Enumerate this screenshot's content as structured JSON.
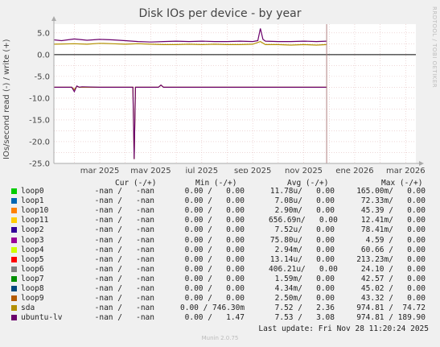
{
  "title": "Disk IOs per device - by year",
  "side_credit": "RRDTOOL / TOBI OETIKER",
  "footer": "Munin 2.0.75",
  "last_update": "Last update: Fri Nov 28 11:20:24 2025",
  "legend_headers": {
    "cur": "Cur (-/+)",
    "min": "Min (-/+)",
    "avg": "Avg (-/+)",
    "max": "Max (-/+)"
  },
  "legend": [
    {
      "name": "loop0",
      "color": "#00cc00",
      "cur": "-nan /   -nan",
      "min": "0.00 /   0.00",
      "avg": "11.78u/   0.00",
      "max": "165.00m/   0.00"
    },
    {
      "name": "loop1",
      "color": "#0066b3",
      "cur": "-nan /   -nan",
      "min": "0.00 /   0.00",
      "avg": "7.08u/   0.00",
      "max": "72.33m/   0.00"
    },
    {
      "name": "loop10",
      "color": "#ff8000",
      "cur": "-nan /   -nan",
      "min": "0.00 /   0.00",
      "avg": "2.90m/   0.00",
      "max": "45.39 /   0.00"
    },
    {
      "name": "loop11",
      "color": "#ffcc00",
      "cur": "-nan /   -nan",
      "min": "0.00 /   0.00",
      "avg": "656.69n/   0.00",
      "max": "12.41m/   0.00"
    },
    {
      "name": "loop2",
      "color": "#330099",
      "cur": "-nan /   -nan",
      "min": "0.00 /   0.00",
      "avg": "7.52u/   0.00",
      "max": "78.41m/   0.00"
    },
    {
      "name": "loop3",
      "color": "#990099",
      "cur": "-nan /   -nan",
      "min": "0.00 /   0.00",
      "avg": "75.80u/   0.00",
      "max": "4.59 /   0.00"
    },
    {
      "name": "loop4",
      "color": "#ccff00",
      "cur": "-nan /   -nan",
      "min": "0.00 /   0.00",
      "avg": "2.94m/   0.00",
      "max": "60.66 /   0.00"
    },
    {
      "name": "loop5",
      "color": "#ff0000",
      "cur": "-nan /   -nan",
      "min": "0.00 /   0.00",
      "avg": "13.14u/   0.00",
      "max": "213.23m/   0.00"
    },
    {
      "name": "loop6",
      "color": "#808080",
      "cur": "-nan /   -nan",
      "min": "0.00 /   0.00",
      "avg": "406.21u/   0.00",
      "max": "24.10 /   0.00"
    },
    {
      "name": "loop7",
      "color": "#008f00",
      "cur": "-nan /   -nan",
      "min": "0.00 /   0.00",
      "avg": "1.59m/   0.00",
      "max": "42.57 /   0.00"
    },
    {
      "name": "loop8",
      "color": "#00487d",
      "cur": "-nan /   -nan",
      "min": "0.00 /   0.00",
      "avg": "4.34m/   0.00",
      "max": "45.02 /   0.00"
    },
    {
      "name": "loop9",
      "color": "#b35a00",
      "cur": "-nan /   -nan",
      "min": "0.00 /   0.00",
      "avg": "2.50m/   0.00",
      "max": "43.32 /   0.00"
    },
    {
      "name": "sda",
      "color": "#b38f00",
      "cur": "-nan /   -nan",
      "min": "0.00 / 746.30m",
      "avg": "7.52 /   2.36",
      "max": "974.81 /  74.72"
    },
    {
      "name": "ubuntu-lv",
      "color": "#6b006b",
      "cur": "-nan /   -nan",
      "min": "0.00 /   1.47",
      "avg": "7.53 /   3.08",
      "max": "974.81 / 189.90"
    }
  ],
  "chart_data": {
    "type": "line",
    "title": "Disk IOs per device - by year",
    "ylabel": "IOs/second read (-) / write (+)",
    "xlabel": "",
    "ylim": [
      -25,
      7
    ],
    "yticks": [
      5.0,
      0.0,
      -5.0,
      -10.0,
      -15.0,
      -20.0,
      -25.0
    ],
    "x_tick_labels": [
      "mar 2025",
      "may 2025",
      "jul 2025",
      "sep 2025",
      "nov 2025",
      "ene 2026",
      "mar 2026"
    ],
    "x_tick_months": [
      2,
      4,
      6,
      8,
      10,
      12,
      14
    ],
    "x_range_months": [
      0.2,
      14.4
    ],
    "data_end_month": 10.9,
    "grid": true,
    "series": [
      {
        "name": "sda",
        "color": "#b38f00",
        "x": [
          0.2,
          1.0,
          1.5,
          2.0,
          2.5,
          3.0,
          3.5,
          4.0,
          4.5,
          5.0,
          5.5,
          6.0,
          6.5,
          7.0,
          7.5,
          8.0,
          8.3,
          8.5,
          9.0,
          9.5,
          10.0,
          10.5,
          10.9
        ],
        "values": [
          2.4,
          2.5,
          2.4,
          2.6,
          2.5,
          2.4,
          2.5,
          2.4,
          2.3,
          2.3,
          2.4,
          2.3,
          2.4,
          2.3,
          2.3,
          2.4,
          3.0,
          2.3,
          2.3,
          2.2,
          2.3,
          2.2,
          2.3
        ]
      },
      {
        "name": "ubuntu-lv",
        "color": "#6b006b",
        "x": [
          0.2,
          0.5,
          1.0,
          1.5,
          2.0,
          2.5,
          3.0,
          3.5,
          4.0,
          4.5,
          5.0,
          5.5,
          6.0,
          6.5,
          7.0,
          7.5,
          8.0,
          8.2,
          8.3,
          8.4,
          8.5,
          9.0,
          9.5,
          10.0,
          10.5,
          10.9
        ],
        "values": [
          3.4,
          3.2,
          3.6,
          3.3,
          3.5,
          3.4,
          3.2,
          3.0,
          2.9,
          3.0,
          3.1,
          3.0,
          3.1,
          3.0,
          3.0,
          3.1,
          3.0,
          3.2,
          6.0,
          3.5,
          3.1,
          3.0,
          3.0,
          3.1,
          3.0,
          3.1
        ]
      },
      {
        "name": "sda",
        "color": "#b38f00",
        "x": [
          0.2,
          0.9,
          1.0,
          1.1,
          1.2,
          2.0,
          3.0,
          3.3,
          3.35,
          3.4,
          3.5,
          4.0,
          4.3,
          4.4,
          4.5,
          5.0,
          6.0,
          7.0,
          8.0,
          9.0,
          10.0,
          10.9
        ],
        "values": [
          -7.5,
          -7.5,
          -8.0,
          -7.3,
          -7.5,
          -7.5,
          -7.5,
          -7.5,
          -24.0,
          -7.5,
          -7.5,
          -7.5,
          -7.5,
          -7.0,
          -7.5,
          -7.5,
          -7.5,
          -7.5,
          -7.5,
          -7.5,
          -7.5,
          -7.5
        ]
      },
      {
        "name": "ubuntu-lv",
        "color": "#6b006b",
        "x": [
          0.2,
          0.9,
          1.0,
          1.1,
          1.2,
          1.3,
          2.0,
          3.0,
          3.3,
          3.35,
          3.4,
          3.5,
          4.0,
          4.3,
          4.4,
          4.5,
          5.0,
          6.0,
          7.0,
          8.0,
          9.0,
          10.0,
          10.9
        ],
        "values": [
          -7.5,
          -7.5,
          -8.5,
          -7.2,
          -7.5,
          -7.4,
          -7.5,
          -7.5,
          -7.5,
          -24.0,
          -7.5,
          -7.5,
          -7.5,
          -7.5,
          -7.0,
          -7.5,
          -7.5,
          -7.5,
          -7.5,
          -7.5,
          -7.5,
          -7.5,
          -7.5
        ]
      }
    ]
  }
}
